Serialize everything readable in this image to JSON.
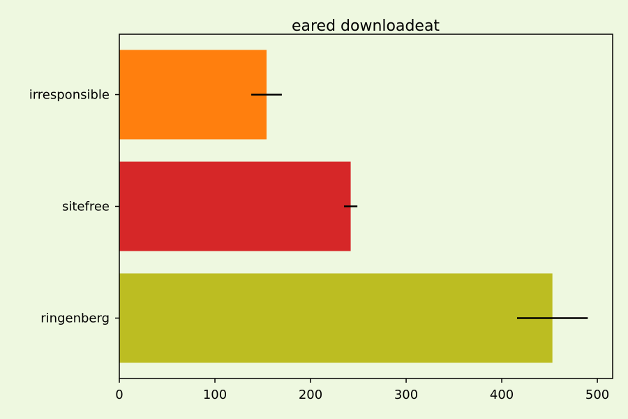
{
  "colors": {
    "background": "#eef8e0",
    "plot_background": "#eef8e0",
    "axis": "#000000",
    "error_bar": "#000000"
  },
  "chart_data": {
    "type": "bar",
    "orientation": "horizontal",
    "title": "eared downloadeat",
    "xlabel": "",
    "ylabel": "",
    "categories": [
      "irresponsible",
      "sitefree",
      "ringenberg"
    ],
    "values": [
      154,
      242,
      453
    ],
    "errors": [
      16,
      7,
      37
    ],
    "bar_colors": [
      "#ff7f0e",
      "#d62728",
      "#bcbd22"
    ],
    "xlim": [
      0,
      516
    ],
    "xticks": [
      0,
      100,
      200,
      300,
      400,
      500
    ],
    "grid": false,
    "legend": "none"
  }
}
